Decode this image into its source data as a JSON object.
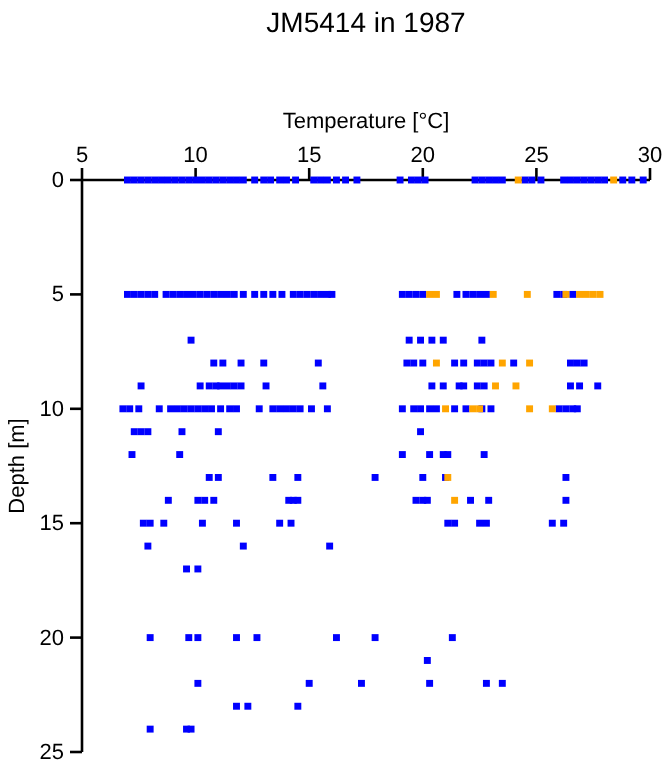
{
  "chart_data": {
    "type": "scatter",
    "title": "JM5414 in 1987",
    "xlabel": "Temperature [°C]",
    "ylabel": "Depth [m]",
    "xlim": [
      5,
      30
    ],
    "xticks": [
      5,
      10,
      15,
      20,
      25,
      30
    ],
    "ylim": [
      25,
      0
    ],
    "yticks": [
      0,
      5,
      10,
      15,
      20,
      25
    ],
    "grid": false,
    "marker": "square",
    "series": [
      {
        "color": "#0000ff",
        "x": [
          7.0,
          7.3,
          7.6,
          7.9,
          8.2,
          8.5,
          8.8,
          9.1,
          9.4,
          9.7,
          10.0,
          10.3,
          10.6,
          10.9,
          11.2,
          11.5,
          11.8,
          12.1,
          12.6,
          13.0,
          13.3,
          13.7,
          14.0,
          14.4,
          15.2,
          15.5,
          15.8,
          16.2,
          16.6,
          17.1,
          19.0,
          19.5,
          19.8,
          20.1,
          22.3,
          22.6,
          22.9,
          23.2,
          23.5,
          24.5,
          24.8,
          25.2,
          26.2,
          26.5,
          26.8,
          27.1,
          27.4,
          27.7,
          28.0,
          28.8,
          29.2,
          29.7,
          7.0,
          7.3,
          7.6,
          7.9,
          8.2,
          8.7,
          9.0,
          9.3,
          9.6,
          9.9,
          10.2,
          10.5,
          10.8,
          11.1,
          11.4,
          11.7,
          12.1,
          12.6,
          13.0,
          13.4,
          13.8,
          14.3,
          14.6,
          14.9,
          15.2,
          15.5,
          15.8,
          16.0,
          19.1,
          19.4,
          19.7,
          20.0,
          21.5,
          21.9,
          22.2,
          22.5,
          22.8,
          25.9,
          26.2,
          26.6,
          9.8,
          19.4,
          19.9,
          20.4,
          20.9,
          22.6,
          10.8,
          11.2,
          12.0,
          13.0,
          15.4,
          19.3,
          19.6,
          20.0,
          21.4,
          21.8,
          22.4,
          22.7,
          23.0,
          24.0,
          26.5,
          26.8,
          27.1,
          7.6,
          10.2,
          10.6,
          10.9,
          11.1,
          11.4,
          11.7,
          12.0,
          13.1,
          15.6,
          20.4,
          20.9,
          21.6,
          21.8,
          22.4,
          22.7,
          26.5,
          26.9,
          27.7,
          6.8,
          7.1,
          7.5,
          8.4,
          8.9,
          9.2,
          9.5,
          9.8,
          10.1,
          10.4,
          10.7,
          11.1,
          11.5,
          11.8,
          12.8,
          13.4,
          13.7,
          14.0,
          14.3,
          14.6,
          15.1,
          15.8,
          19.1,
          19.6,
          19.9,
          20.3,
          20.6,
          21.4,
          21.9,
          22.6,
          23.0,
          26.0,
          26.3,
          26.6,
          26.8,
          7.3,
          7.6,
          7.9,
          9.4,
          11.0,
          19.9,
          7.2,
          9.3,
          19.1,
          20.3,
          20.9,
          21.1,
          22.7,
          10.6,
          11.0,
          13.4,
          14.5,
          17.9,
          20.0,
          21.0,
          26.3,
          8.8,
          10.1,
          10.4,
          10.8,
          14.1,
          14.3,
          14.5,
          19.7,
          20.0,
          20.2,
          22.1,
          22.9,
          26.3,
          7.7,
          8.0,
          8.6,
          10.3,
          11.8,
          13.7,
          14.2,
          21.1,
          21.4,
          22.5,
          22.8,
          25.7,
          26.2,
          7.9,
          12.1,
          15.9,
          9.6,
          10.1,
          8.0,
          9.7,
          10.1,
          11.8,
          12.7,
          16.2,
          17.9,
          21.3,
          20.2,
          10.1,
          15.0,
          17.3,
          20.3,
          22.8,
          23.5,
          11.8,
          12.3,
          14.5,
          8.0,
          9.6,
          9.8
        ],
        "values": [
          0,
          0,
          0,
          0,
          0,
          0,
          0,
          0,
          0,
          0,
          0,
          0,
          0,
          0,
          0,
          0,
          0,
          0,
          0,
          0,
          0,
          0,
          0,
          0,
          0,
          0,
          0,
          0,
          0,
          0,
          0,
          0,
          0,
          0,
          0,
          0,
          0,
          0,
          0,
          0,
          0,
          0,
          0,
          0,
          0,
          0,
          0,
          0,
          0,
          0,
          0,
          0,
          5,
          5,
          5,
          5,
          5,
          5,
          5,
          5,
          5,
          5,
          5,
          5,
          5,
          5,
          5,
          5,
          5,
          5,
          5,
          5,
          5,
          5,
          5,
          5,
          5,
          5,
          5,
          5,
          5,
          5,
          5,
          5,
          5,
          5,
          5,
          5,
          5,
          5,
          5,
          5,
          7,
          7,
          7,
          7,
          7,
          7,
          8,
          8,
          8,
          8,
          8,
          8,
          8,
          8,
          8,
          8,
          8,
          8,
          8,
          8,
          8,
          8,
          8,
          9,
          9,
          9,
          9,
          9,
          9,
          9,
          9,
          9,
          9,
          9,
          9,
          9,
          9,
          9,
          9,
          9,
          9,
          9,
          10,
          10,
          10,
          10,
          10,
          10,
          10,
          10,
          10,
          10,
          10,
          10,
          10,
          10,
          10,
          10,
          10,
          10,
          10,
          10,
          10,
          10,
          10,
          10,
          10,
          10,
          10,
          10,
          10,
          10,
          10,
          10,
          10,
          10,
          10,
          11,
          11,
          11,
          11,
          11,
          11,
          12,
          12,
          12,
          12,
          12,
          12,
          12,
          13,
          13,
          13,
          13,
          13,
          13,
          13,
          13,
          14,
          14,
          14,
          14,
          14,
          14,
          14,
          14,
          14,
          14,
          14,
          14,
          14,
          15,
          15,
          15,
          15,
          15,
          15,
          15,
          15,
          15,
          15,
          15,
          15,
          15,
          16,
          16,
          16,
          17,
          17,
          20,
          20,
          20,
          20,
          20,
          20,
          20,
          20,
          21,
          22,
          22,
          22,
          22,
          22,
          22,
          23,
          23,
          23,
          24,
          24,
          24
        ]
      },
      {
        "color": "#ffa500",
        "x": [
          24.2,
          28.4,
          20.3,
          20.6,
          23.1,
          24.6,
          26.3,
          26.9,
          27.2,
          27.5,
          27.8,
          20.6,
          23.5,
          24.7,
          23.2,
          24.1,
          21.0,
          22.2,
          22.5,
          24.7,
          25.7,
          21.1,
          21.4
        ],
        "values": [
          0,
          0,
          5,
          5,
          5,
          5,
          5,
          5,
          5,
          5,
          5,
          8,
          8,
          8,
          9,
          9,
          10,
          10,
          10,
          10,
          10,
          13,
          14
        ]
      }
    ]
  }
}
